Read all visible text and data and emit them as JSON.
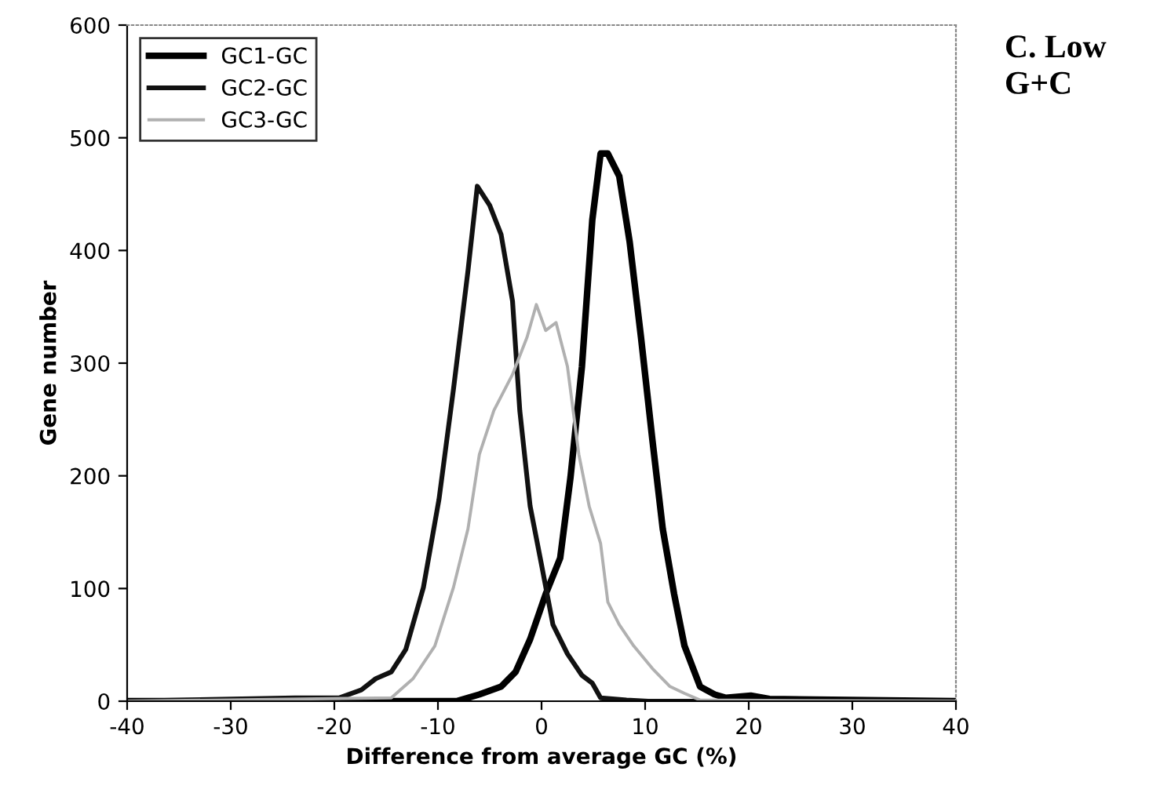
{
  "chart_data": {
    "type": "line",
    "xlabel": "Difference from average GC (%)",
    "ylabel": "Gene number",
    "annotations": [
      "C. Low\nG+C"
    ],
    "xlim": [
      -40,
      40
    ],
    "xticks": [
      -40,
      -30,
      -20,
      -10,
      0,
      10,
      20,
      30,
      40
    ],
    "ylim": [
      0,
      600
    ],
    "yticks": [
      0,
      100,
      200,
      300,
      400,
      500,
      600
    ],
    "grid": false,
    "legend": "top left",
    "marker": "none",
    "line_style": "solid",
    "series": [
      {
        "name": "GC1-GC",
        "color": "#000000",
        "x": [
          -40,
          -8.2,
          -6,
          -3.9,
          -2.5,
          -1.1,
          0.4,
          1.8,
          2.8,
          3.9,
          4.9,
          5.7,
          6.4,
          7.5,
          8.5,
          9.6,
          10.7,
          11.7,
          12.8,
          13.8,
          15.3,
          16.7,
          17.8,
          20.2,
          22,
          40
        ],
        "values": [
          0,
          0,
          6,
          13,
          26,
          55,
          95,
          127,
          199,
          297,
          427,
          486,
          486,
          466,
          408,
          323,
          232,
          153,
          95,
          49,
          13,
          6,
          3,
          5,
          2,
          0
        ]
      },
      {
        "name": "GC2-GC",
        "color": "#111111",
        "x": [
          -40,
          -23.8,
          -19.5,
          -17.4,
          -16,
          -14.5,
          -13.1,
          -11.4,
          -9.9,
          -8.5,
          -7.1,
          -6.2,
          -5,
          -3.9,
          -2.8,
          -2.1,
          -1.1,
          0,
          1.1,
          2.5,
          3.9,
          4.9,
          5.7,
          8.2,
          10.3,
          40
        ],
        "values": [
          0,
          3,
          3,
          10,
          20,
          26,
          46,
          101,
          179,
          277,
          382,
          457,
          440,
          414,
          355,
          258,
          173,
          121,
          68,
          42,
          23,
          16,
          3,
          1,
          0,
          0
        ]
      },
      {
        "name": "GC3-GC",
        "color": "#b0b0b0",
        "x": [
          -40,
          -14.5,
          -12.4,
          -10.3,
          -8.5,
          -7.1,
          -6,
          -4.6,
          -2.8,
          -1.4,
          -0.5,
          0.4,
          1.4,
          2.5,
          3.6,
          4.6,
          5.7,
          6.4,
          7.5,
          8.9,
          10.7,
          12.4,
          13.8,
          15.3,
          40
        ],
        "values": [
          0,
          3,
          20,
          49,
          101,
          153,
          219,
          258,
          290,
          323,
          352,
          329,
          336,
          297,
          219,
          173,
          140,
          88,
          68,
          49,
          29,
          13,
          7,
          1,
          0
        ]
      }
    ]
  }
}
